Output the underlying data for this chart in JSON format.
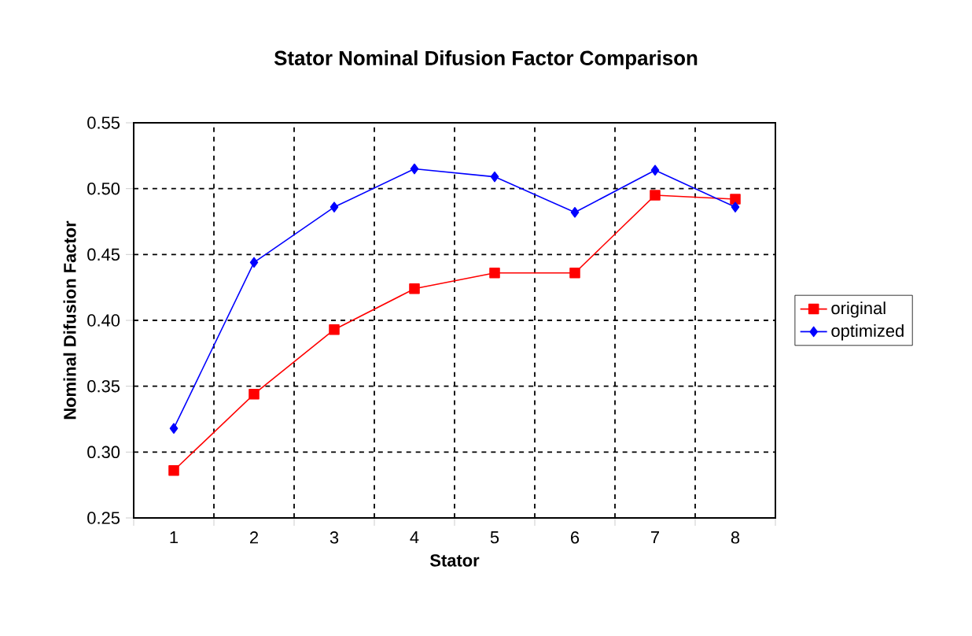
{
  "chart_data": {
    "type": "line",
    "title": "Stator Nominal Difusion Factor Comparison",
    "xlabel": "Stator",
    "ylabel": "Nominal Difusion Factor",
    "categories": [
      "1",
      "2",
      "3",
      "4",
      "5",
      "6",
      "7",
      "8"
    ],
    "series": [
      {
        "name": "original",
        "color": "#ff0000",
        "marker": "square",
        "values": [
          0.286,
          0.344,
          0.393,
          0.424,
          0.436,
          0.436,
          0.495,
          0.492
        ]
      },
      {
        "name": "optimized",
        "color": "#0000ff",
        "marker": "diamond",
        "values": [
          0.318,
          0.444,
          0.486,
          0.515,
          0.509,
          0.482,
          0.514,
          0.486
        ]
      }
    ],
    "ylim": [
      0.25,
      0.55
    ],
    "yticks": [
      {
        "value": 0.25,
        "label": "0.25"
      },
      {
        "value": 0.3,
        "label": "0.30"
      },
      {
        "value": 0.35,
        "label": "0.35"
      },
      {
        "value": 0.4,
        "label": "0.40"
      },
      {
        "value": 0.45,
        "label": "0.45"
      },
      {
        "value": 0.5,
        "label": "0.50"
      },
      {
        "value": 0.55,
        "label": "0.55"
      }
    ],
    "grid": true,
    "legend": "right",
    "line_style": "solid"
  }
}
